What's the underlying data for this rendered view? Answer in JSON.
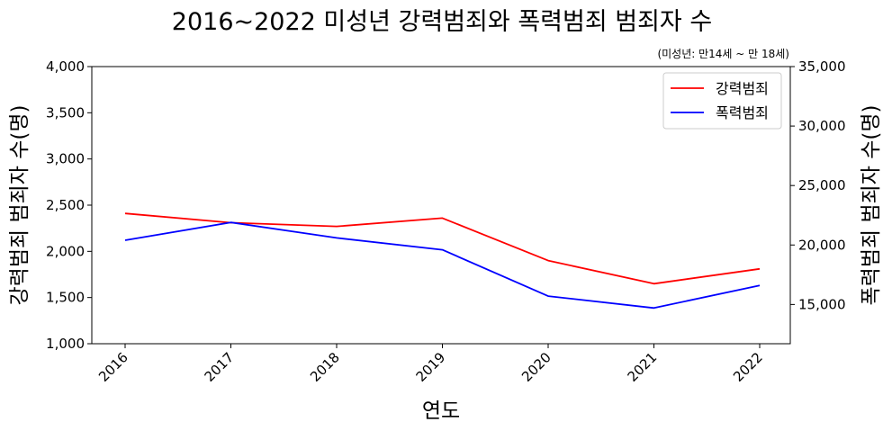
{
  "chart_data": {
    "type": "line",
    "title": "2016~2022 미성년 강력범죄와 폭력범죄 범죄자 수",
    "note": "(미성년: 만14세 ~ 만 18세)",
    "xlabel": "연도",
    "ylabel_left": "강력범죄 범죄자 수(명)",
    "ylabel_right": "폭력범죄 범죄자 수(명)",
    "categories": [
      "2016",
      "2017",
      "2018",
      "2019",
      "2020",
      "2021",
      "2022"
    ],
    "left_axis": {
      "min": 1000,
      "max": 4000,
      "ticks": [
        "1,000",
        "1,500",
        "2,000",
        "2,500",
        "3,000",
        "3,500",
        "4,000"
      ],
      "tick_values": [
        1000,
        1500,
        2000,
        2500,
        3000,
        3500,
        4000
      ]
    },
    "right_axis": {
      "min": 11700,
      "max": 35000,
      "ticks": [
        "15,000",
        "20,000",
        "25,000",
        "30,000",
        "35,000"
      ],
      "tick_values": [
        15000,
        20000,
        25000,
        30000,
        35000
      ]
    },
    "series": [
      {
        "name": "강력범죄",
        "axis": "left",
        "color": "#ff0000",
        "values": [
          2410,
          2310,
          2270,
          2360,
          1900,
          1650,
          1810
        ]
      },
      {
        "name": "폭력범죄",
        "axis": "right",
        "color": "#0000ff",
        "values": [
          20400,
          21900,
          20600,
          19600,
          15700,
          14700,
          16600
        ]
      }
    ],
    "grid": false,
    "legend": "top-right"
  }
}
